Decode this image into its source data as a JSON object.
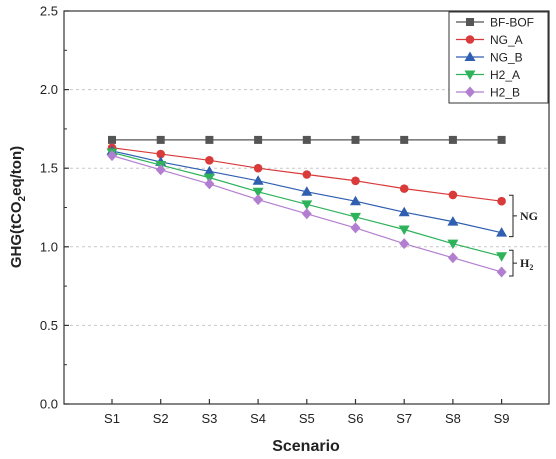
{
  "chart_data": {
    "type": "line",
    "xlabel": "Scenario",
    "ylabel": {
      "prefix": "GHG(tCO",
      "sub": "2",
      "suffix": "eq/ton)"
    },
    "ylim": [
      0,
      2.5
    ],
    "y_ticks": [
      "0.0",
      "0.5",
      "1.0",
      "1.5",
      "2.0",
      "2.5"
    ],
    "grid": "horizontal dashed",
    "legend_position": "top-right",
    "categories": [
      "S1",
      "S2",
      "S3",
      "S4",
      "S5",
      "S6",
      "S7",
      "S8",
      "S9"
    ],
    "series": [
      {
        "name": "BF-BOF",
        "color": "#555555",
        "marker": "square",
        "values": [
          1.68,
          1.68,
          1.68,
          1.68,
          1.68,
          1.68,
          1.68,
          1.68,
          1.68
        ]
      },
      {
        "name": "NG_A",
        "color": "#d93a3a",
        "marker": "circle",
        "values": [
          1.63,
          1.59,
          1.55,
          1.5,
          1.46,
          1.42,
          1.37,
          1.33,
          1.29
        ]
      },
      {
        "name": "NG_B",
        "color": "#2e5fb0",
        "marker": "triangle-up",
        "values": [
          1.61,
          1.54,
          1.48,
          1.42,
          1.35,
          1.29,
          1.22,
          1.16,
          1.09
        ]
      },
      {
        "name": "H2_A",
        "color": "#2eb35a",
        "marker": "triangle-down",
        "values": [
          1.6,
          1.52,
          1.44,
          1.35,
          1.27,
          1.19,
          1.11,
          1.02,
          0.94
        ]
      },
      {
        "name": "H2_B",
        "color": "#b27fd0",
        "marker": "diamond",
        "values": [
          1.58,
          1.49,
          1.4,
          1.3,
          1.21,
          1.12,
          1.02,
          0.93,
          0.84
        ]
      }
    ],
    "annotations": [
      {
        "label": "NG",
        "series_range": [
          "NG_A",
          "NG_B"
        ]
      },
      {
        "label": "H",
        "sub": "2",
        "series_range": [
          "H2_A",
          "H2_B"
        ]
      }
    ]
  }
}
